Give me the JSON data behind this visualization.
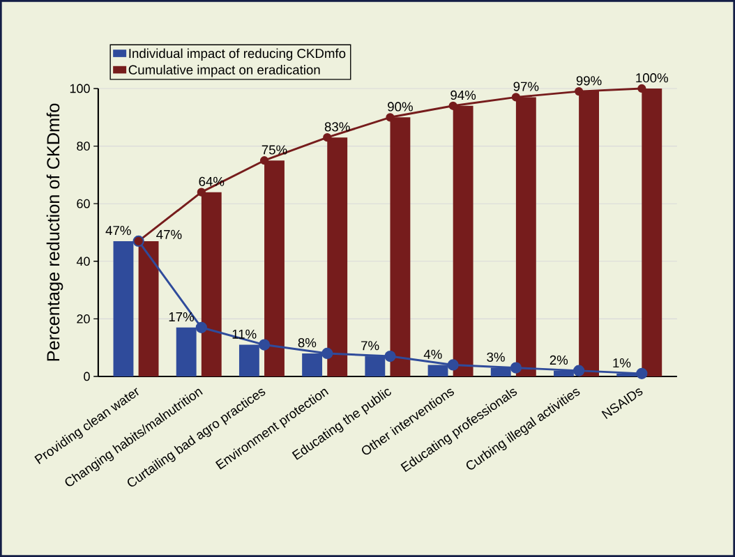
{
  "chart_data": {
    "type": "bar",
    "ylabel": "Percentage reduction of CKDmfo",
    "categories": [
      "Providing clean water",
      "Changing habits/malnutrition",
      "Curtailing bad agro practices",
      "Environment protection",
      "Educating the public",
      "Other interventions",
      "Educating professionals",
      "Curbing illegal activities",
      "NSAIDs"
    ],
    "ylim": [
      0,
      100
    ],
    "yticks": [
      0,
      20,
      40,
      60,
      80,
      100
    ],
    "grid": "y",
    "legend": "top left",
    "marker": "circle",
    "series": [
      {
        "name": "Individual impact of reducing CKDmfo",
        "color": "#2f4b9b",
        "values": [
          47,
          17,
          11,
          8,
          7,
          4,
          3,
          2,
          1
        ],
        "value_labels": [
          "47%",
          "17%",
          "11%",
          "8%",
          "7%",
          "4%",
          "3%",
          "2%",
          "1%"
        ]
      },
      {
        "name": "Cumulative impact on eradication",
        "color": "#761c1c",
        "values": [
          47,
          64,
          75,
          83,
          90,
          94,
          97,
          99,
          100
        ],
        "value_labels": [
          "47%",
          "64%",
          "75%",
          "83%",
          "90%",
          "94%",
          "97%",
          "99%",
          "100%"
        ]
      },
      {
        "type": "line",
        "color": "#2f4b9b",
        "values": [
          47,
          17,
          11,
          8,
          7,
          4,
          3,
          2,
          1
        ]
      },
      {
        "type": "line",
        "color": "#761c1c",
        "values": [
          47,
          64,
          75,
          83,
          90,
          94,
          97,
          99,
          100
        ]
      }
    ]
  }
}
